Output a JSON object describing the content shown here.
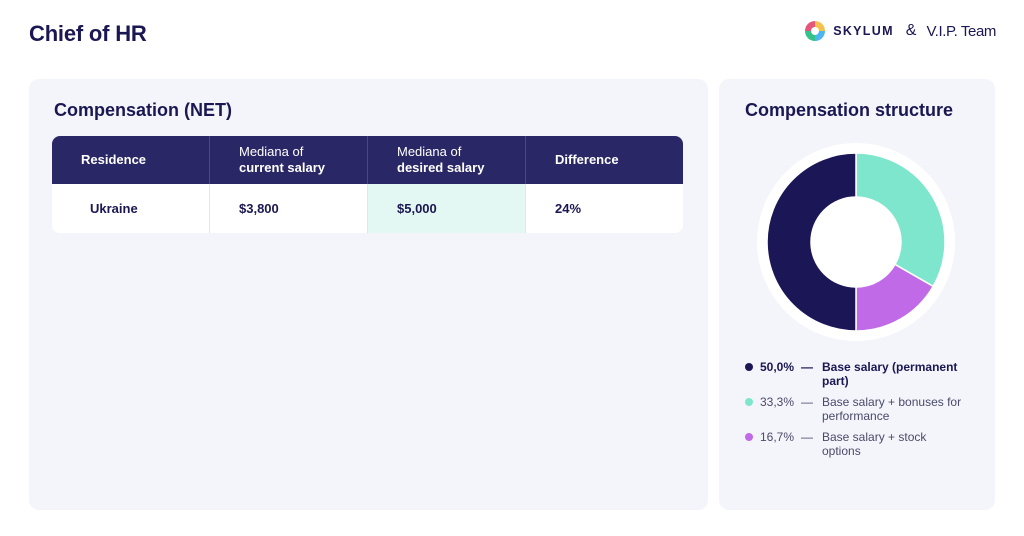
{
  "page": {
    "title": "Chief of HR"
  },
  "brands": {
    "skylum": "SKYLUM",
    "amp": "&",
    "vip": "V.I.P. Team"
  },
  "compensation": {
    "title": "Compensation (NET)",
    "headers": [
      {
        "line1": "Residence",
        "line2": ""
      },
      {
        "line1": "Mediana of",
        "line2": "current salary"
      },
      {
        "line1": "Mediana of",
        "line2": "desired salary"
      },
      {
        "line1": "Difference",
        "line2": ""
      }
    ],
    "rows": [
      {
        "residence": "Ukraine",
        "current": "$3,800",
        "desired": "$5,000",
        "difference": "24%"
      }
    ]
  },
  "structure": {
    "title": "Compensation structure"
  },
  "chart_data": {
    "type": "pie",
    "title": "Compensation structure",
    "donut": true,
    "slices": [
      {
        "value": 33.3,
        "label_value": "33,3%",
        "label": "Base salary + bonuses for performance",
        "color": "#7ee6cc"
      },
      {
        "value": 16.7,
        "label_value": "16,7%",
        "label": "Base salary + stock options",
        "color": "#c06ae8"
      },
      {
        "value": 50.0,
        "label_value": "50,0%",
        "label": "Base salary (permanent part)",
        "color": "#1b1656"
      }
    ],
    "legend_order": [
      2,
      0,
      1
    ],
    "legend_dash": "—",
    "legend_placement": "bottom"
  }
}
